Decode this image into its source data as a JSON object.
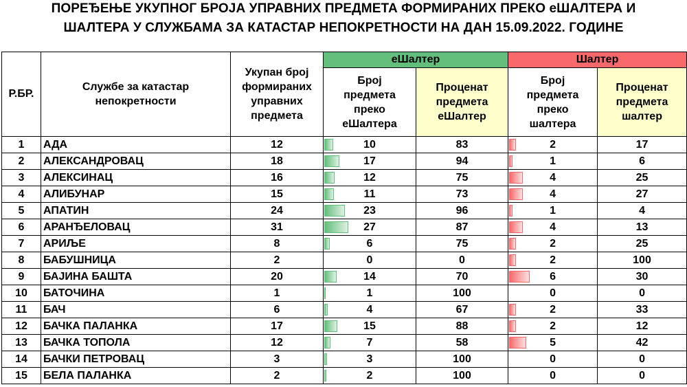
{
  "title": {
    "line1": "ПОРЕЂЕЊЕ УКУПНОГ БРОЈА УПРАВНИХ ПРЕДМЕТА ФОРМИРАНИХ ПРЕКО еШАЛТЕРА И",
    "line2": "ШАЛТЕРА У СЛУЖБАМА ЗА КАТАСТАР НЕПОКРЕТНОСТИ НА ДАН 15.09.2022. ГОДИНЕ"
  },
  "headers": {
    "rbr": "Р.БР.",
    "service": "Службе за катастар непокретности",
    "total": "Укупан број формираних управних предмета",
    "eshalter_group": "еШалтер",
    "shalter_group": "Шалтер",
    "e_count": "Број предмета преко еШалтера",
    "e_pct": "Проценат предмета еШалтер",
    "s_count": "Број предмета преко шалтера",
    "s_pct": "Проценат предмета шалтер"
  },
  "colors": {
    "eshalter": "#63be7b",
    "shalter": "#f8696b",
    "pct_header": "#ffffcc"
  },
  "rows": [
    {
      "n": "1",
      "name": "АДА",
      "total": "12",
      "e": "10",
      "ep": "83",
      "s": "2",
      "sp": "17"
    },
    {
      "n": "2",
      "name": "АЛЕКСАНДРОВАЦ",
      "total": "18",
      "e": "17",
      "ep": "94",
      "s": "1",
      "sp": "6"
    },
    {
      "n": "3",
      "name": "АЛЕКСИНАЦ",
      "total": "16",
      "e": "12",
      "ep": "75",
      "s": "4",
      "sp": "25"
    },
    {
      "n": "4",
      "name": "АЛИБУНАР",
      "total": "15",
      "e": "11",
      "ep": "73",
      "s": "4",
      "sp": "27"
    },
    {
      "n": "5",
      "name": "АПАТИН",
      "total": "24",
      "e": "23",
      "ep": "96",
      "s": "1",
      "sp": "4"
    },
    {
      "n": "6",
      "name": "АРАНЂЕЛОВАЦ",
      "total": "31",
      "e": "27",
      "ep": "87",
      "s": "4",
      "sp": "13"
    },
    {
      "n": "7",
      "name": "АРИЉЕ",
      "total": "8",
      "e": "6",
      "ep": "75",
      "s": "2",
      "sp": "25"
    },
    {
      "n": "8",
      "name": "БАБУШНИЦА",
      "total": "2",
      "e": "0",
      "ep": "0",
      "s": "2",
      "sp": "100"
    },
    {
      "n": "9",
      "name": "БАЈИНА БАШТА",
      "total": "20",
      "e": "14",
      "ep": "70",
      "s": "6",
      "sp": "30"
    },
    {
      "n": "10",
      "name": "БАТОЧИНА",
      "total": "1",
      "e": "1",
      "ep": "100",
      "s": "0",
      "sp": "0"
    },
    {
      "n": "11",
      "name": "БАЧ",
      "total": "6",
      "e": "4",
      "ep": "67",
      "s": "2",
      "sp": "33"
    },
    {
      "n": "12",
      "name": "БАЧКА ПАЛАНКА",
      "total": "17",
      "e": "15",
      "ep": "88",
      "s": "2",
      "sp": "12"
    },
    {
      "n": "13",
      "name": "БАЧКА ТОПОЛА",
      "total": "12",
      "e": "7",
      "ep": "58",
      "s": "5",
      "sp": "42"
    },
    {
      "n": "14",
      "name": "БАЧКИ ПЕТРОВАЦ",
      "total": "3",
      "e": "3",
      "ep": "100",
      "s": "0",
      "sp": "0"
    },
    {
      "n": "15",
      "name": "БЕЛА ПАЛАНКА",
      "total": "2",
      "e": "2",
      "ep": "100",
      "s": "0",
      "sp": "0"
    }
  ]
}
